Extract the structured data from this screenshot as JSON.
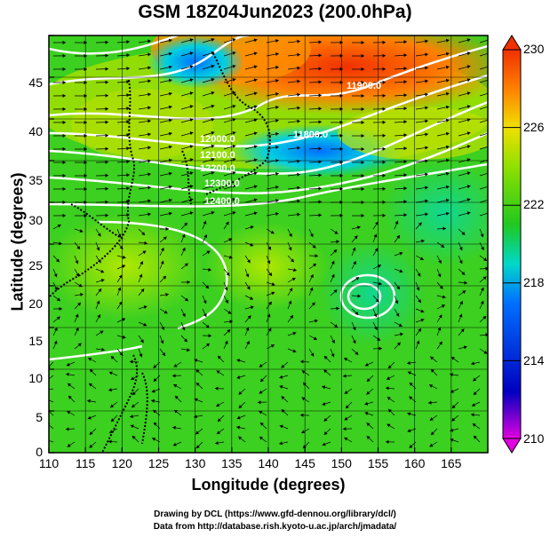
{
  "title": "GSM 18Z04Jun2023 (200.0hPa)",
  "x_axis": {
    "label": "Longitude (degrees)",
    "min": 110,
    "max": 170,
    "ticks": [
      "110",
      "115",
      "120",
      "125",
      "130",
      "135",
      "140",
      "145",
      "150",
      "155",
      "160",
      "165"
    ]
  },
  "y_axis": {
    "label": "Latitude  (degrees)",
    "min": 0,
    "max": 50,
    "ticks": [
      "0",
      "5",
      "10",
      "15",
      "20",
      "25",
      "30",
      "35",
      "40",
      "45"
    ]
  },
  "colorbar": {
    "ticks": [
      "210",
      "214",
      "218",
      "222",
      "226",
      "230"
    ],
    "min": 210,
    "max": 230,
    "colors": [
      "#e000e0",
      "#0000c0",
      "#0050ff",
      "#00e0d0",
      "#20c820",
      "#90e000",
      "#f0e000",
      "#ff8000",
      "#f03000"
    ]
  },
  "contour_labels": [
    "12000.0",
    "12100.0",
    "12200.0",
    "12300.0",
    "12400.0",
    "11800.0",
    "11900.0"
  ],
  "credits": [
    "Drawing by DCL (https://www.gfd-dennou.org/library/dcl/)",
    "Data from http://database.rish.kyoto-u.ac.jp/arch/jmadata/"
  ]
}
